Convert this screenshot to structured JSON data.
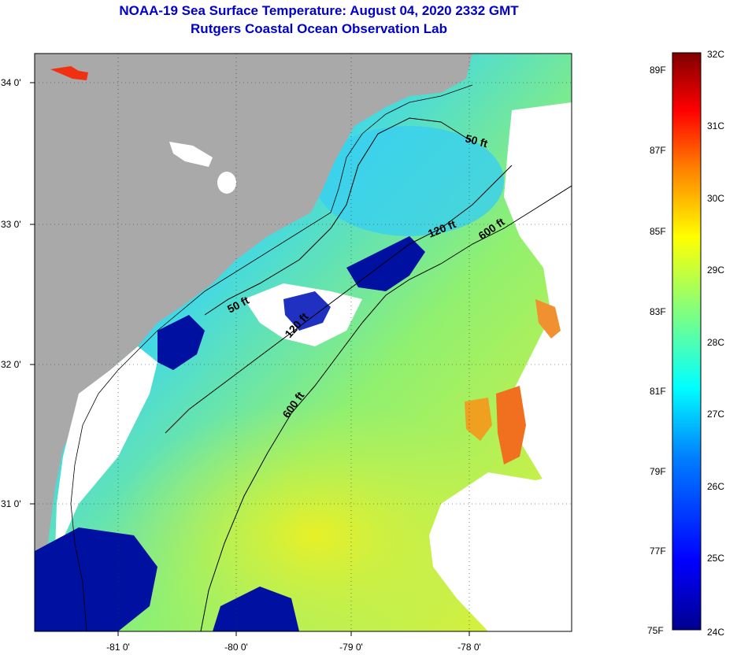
{
  "title": {
    "line1": "NOAA-19 Sea Surface Temperature:  August 04, 2020 2332 GMT",
    "line2": "Rutgers Coastal Ocean Observation Lab"
  },
  "map": {
    "lat_labels": [
      "34 0'",
      "33 0'",
      "32 0'",
      "31 0'"
    ],
    "lon_labels": [
      "-81 0'",
      "-80 0'",
      "-79 0'",
      "-78 0'"
    ],
    "contour_labels": [
      "50 ft",
      "120 ft",
      "600 ft",
      "50 ft",
      "120 ft",
      "600 ft"
    ],
    "colors": {
      "land": "#a9a9a9",
      "cloud": "#ffffff",
      "water_cool": "#00c8e8",
      "water_mid": "#60e0b0",
      "water_warm": "#c8f040",
      "water_hot": "#f0f020",
      "cold_patch": "#0010a0",
      "warm_patch": "#f07020"
    }
  },
  "colorbar": {
    "celsius_labels": [
      "32C",
      "31C",
      "30C",
      "29C",
      "28C",
      "27C",
      "26C",
      "25C",
      "24C"
    ],
    "fahrenheit_labels": [
      "89F",
      "87F",
      "85F",
      "83F",
      "81F",
      "79F",
      "77F",
      "75F"
    ],
    "colors": [
      "#00008f",
      "#0000ff",
      "#0080ff",
      "#00ffff",
      "#80ff80",
      "#ffff00",
      "#ff8000",
      "#ff0000",
      "#800000"
    ]
  }
}
